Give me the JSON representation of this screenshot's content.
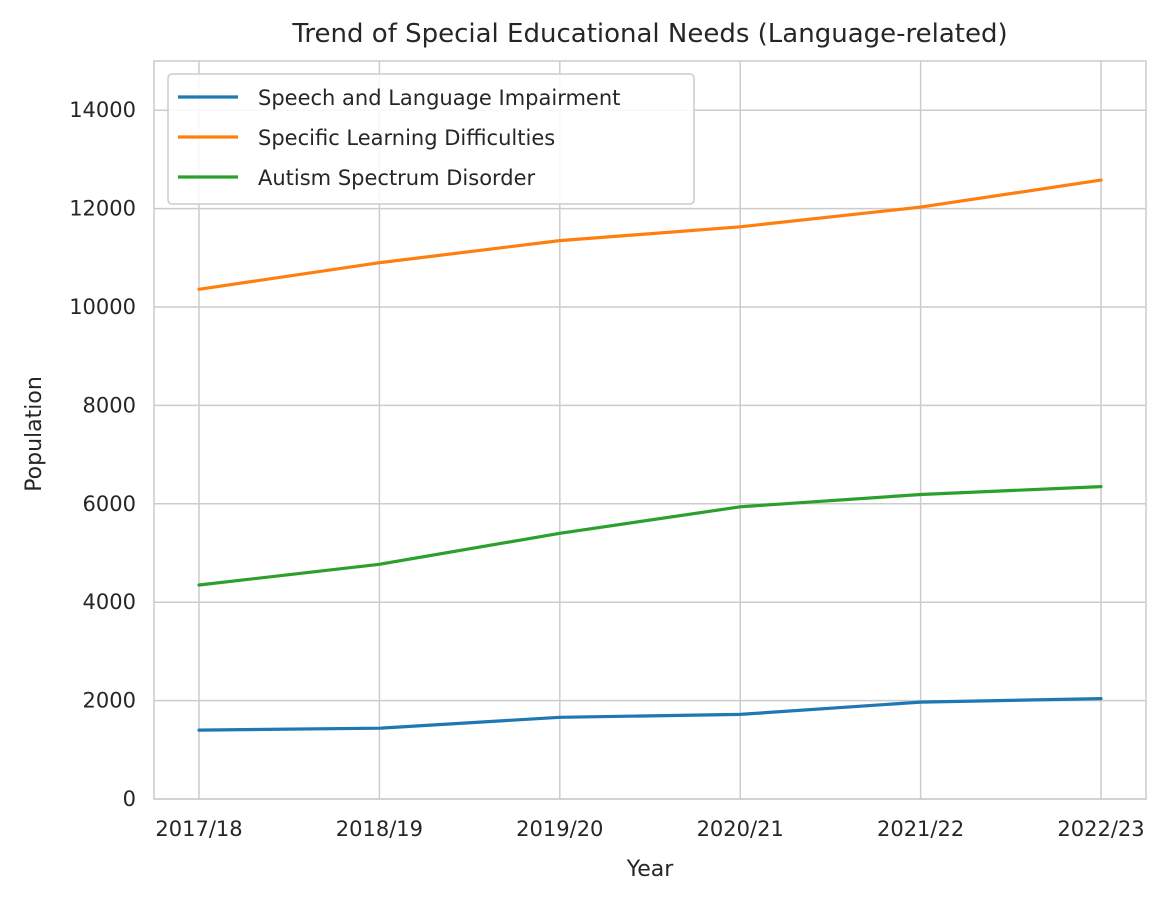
{
  "chart_data": {
    "type": "line",
    "title": "Trend of Special Educational Needs (Language-related)",
    "xlabel": "Year",
    "ylabel": "Population",
    "categories": [
      "2017/18",
      "2018/19",
      "2019/20",
      "2020/21",
      "2021/22",
      "2022/23"
    ],
    "ylim": [
      0,
      15000
    ],
    "yticks": [
      0,
      2000,
      4000,
      6000,
      8000,
      10000,
      12000,
      14000
    ],
    "grid": true,
    "legend_position": "top-left",
    "series": [
      {
        "name": "Speech and Language Impairment",
        "color": "#1f77b4",
        "values": [
          1400,
          1440,
          1660,
          1720,
          1970,
          2040
        ]
      },
      {
        "name": "Specific Learning Difficulties",
        "color": "#ff7f0e",
        "values": [
          10360,
          10900,
          11350,
          11630,
          12030,
          12580
        ]
      },
      {
        "name": "Autism Spectrum Disorder",
        "color": "#2ca02c",
        "values": [
          4350,
          4770,
          5400,
          5940,
          6190,
          6350
        ]
      }
    ]
  }
}
